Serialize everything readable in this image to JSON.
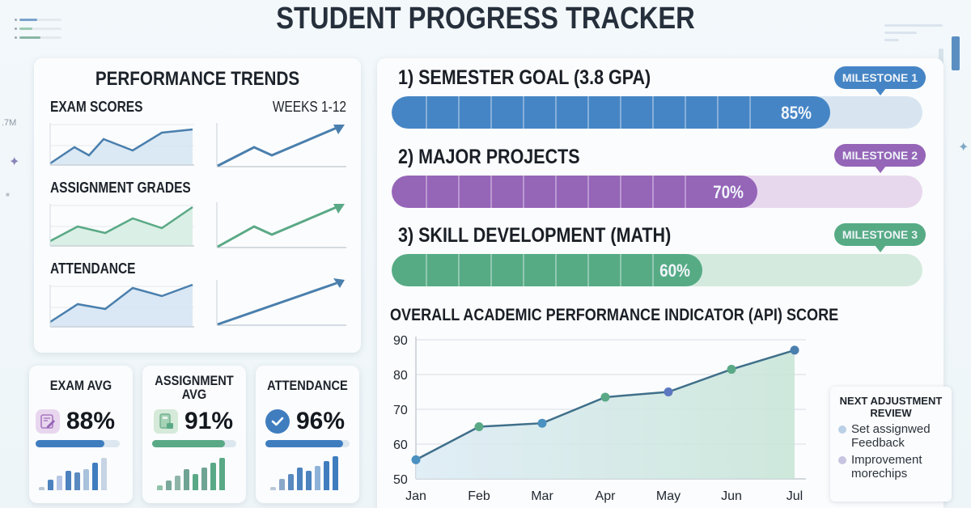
{
  "page": {
    "title": "STUDENT PROGRESS TRACKER"
  },
  "decor": {
    "side_text": ".7M"
  },
  "trends": {
    "title": "PERFORMANCE TRENDS",
    "period": "WEEKS 1-12",
    "rows": [
      {
        "label": "EXAM SCORES",
        "color": "#4a7fad",
        "fill": "#d3e4f3"
      },
      {
        "label": "ASSIGNMENT GRADES",
        "color": "#5aa986",
        "fill": "#d6ede2"
      },
      {
        "label": "ATTENDANCE",
        "color": "#4a7fad",
        "fill": "#d3e4f3"
      }
    ]
  },
  "kpis": [
    {
      "title": "EXAM AVG",
      "value": "88%",
      "percent": 88,
      "icon": "exam-edit-icon",
      "color": "#3f7dbf",
      "bars": [
        3,
        12,
        18,
        24,
        22,
        28,
        34,
        40
      ]
    },
    {
      "title": "ASSIGNMENT AVG",
      "value": "91%",
      "percent": 91,
      "icon": "document-icon",
      "color": "#5aa986",
      "bars": [
        6,
        12,
        18,
        26,
        20,
        28,
        34,
        40
      ]
    },
    {
      "title": "ATTENDANCE",
      "value": "96%",
      "percent": 96,
      "icon": "checkmark-circle-icon",
      "color": "#3f7dbf",
      "bars": [
        4,
        14,
        20,
        28,
        24,
        30,
        36,
        42
      ]
    }
  ],
  "goals": [
    {
      "label": "1) SEMESTER GOAL (3.8 GPA)",
      "percent": 85,
      "percent_label": "85%",
      "milestone": "MILESTONE 1",
      "color": "#4585c5",
      "track": "#d8e5f1"
    },
    {
      "label": "2) MAJOR PROJECTS",
      "percent": 70,
      "percent_label": "70%",
      "milestone": "MILESTONE 2",
      "color": "#9565b8",
      "track": "#e8d8ee"
    },
    {
      "label": "3) SKILL DEVELOPMENT (MATH)",
      "percent": 60,
      "percent_label": "60%",
      "milestone": "MILESTONE 3",
      "color": "#56ab85",
      "track": "#d4eade"
    }
  ],
  "api_chart": {
    "title": "OVERALL ACADEMIC PERFORMANCE INDICATOR (API) SCORE"
  },
  "chart_data": {
    "type": "area",
    "title": "OVERALL ACADEMIC PERFORMANCE INDICATOR (API) SCORE",
    "categories": [
      "Jan",
      "Feb",
      "Mar",
      "Apr",
      "May",
      "Jun",
      "Jul"
    ],
    "values": [
      55.5,
      65,
      66,
      73.5,
      75,
      81.5,
      87
    ],
    "xlabel": "",
    "ylabel": "",
    "ylim": [
      50,
      90
    ],
    "yticks": [
      50,
      60,
      70,
      80,
      90
    ],
    "grid": true,
    "legend": null
  },
  "review": {
    "title": "NEXT ADJUSTMENT REVIEW",
    "items": [
      {
        "text": "Set assignwed Feedback",
        "color": "#b9d0e6"
      },
      {
        "text": "Improvement morechips",
        "color": "#c6c4e0"
      }
    ]
  }
}
